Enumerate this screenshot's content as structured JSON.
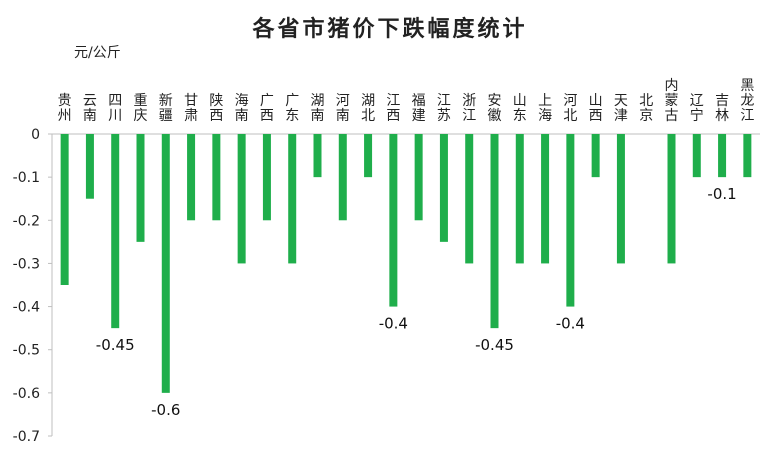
{
  "chart_data": {
    "type": "bar",
    "title": "各省市猪价下跌幅度统计",
    "ylabel": "元/公斤",
    "xlabel": "",
    "ylim": [
      -0.7,
      0
    ],
    "yticks": [
      0,
      -0.1,
      -0.2,
      -0.3,
      -0.4,
      -0.5,
      -0.6,
      -0.7
    ],
    "categories": [
      "贵州",
      "云南",
      "四川",
      "重庆",
      "新疆",
      "甘肃",
      "陕西",
      "海南",
      "广西",
      "广东",
      "湖南",
      "河南",
      "湖北",
      "江西",
      "福建",
      "江苏",
      "浙江",
      "安徽",
      "山东",
      "上海",
      "河北",
      "山西",
      "天津",
      "北京",
      "内蒙古",
      "辽宁",
      "吉林",
      "黑龙江"
    ],
    "values": [
      -0.35,
      -0.15,
      -0.45,
      -0.25,
      -0.6,
      -0.2,
      -0.2,
      -0.3,
      -0.2,
      -0.3,
      -0.1,
      -0.2,
      -0.1,
      -0.4,
      -0.2,
      -0.25,
      -0.3,
      -0.45,
      -0.3,
      -0.3,
      -0.4,
      -0.1,
      -0.3,
      0,
      -0.3,
      -0.1,
      -0.1,
      -0.1
    ],
    "data_labels": [
      {
        "category": "四川",
        "text": "-0.45"
      },
      {
        "category": "新疆",
        "text": "-0.6"
      },
      {
        "category": "江西",
        "text": "-0.4"
      },
      {
        "category": "安徽",
        "text": "-0.45"
      },
      {
        "category": "河北",
        "text": "-0.4"
      },
      {
        "category": "吉林",
        "text": "-0.1"
      }
    ],
    "bar_color": "#1fae4b",
    "grid": false
  }
}
